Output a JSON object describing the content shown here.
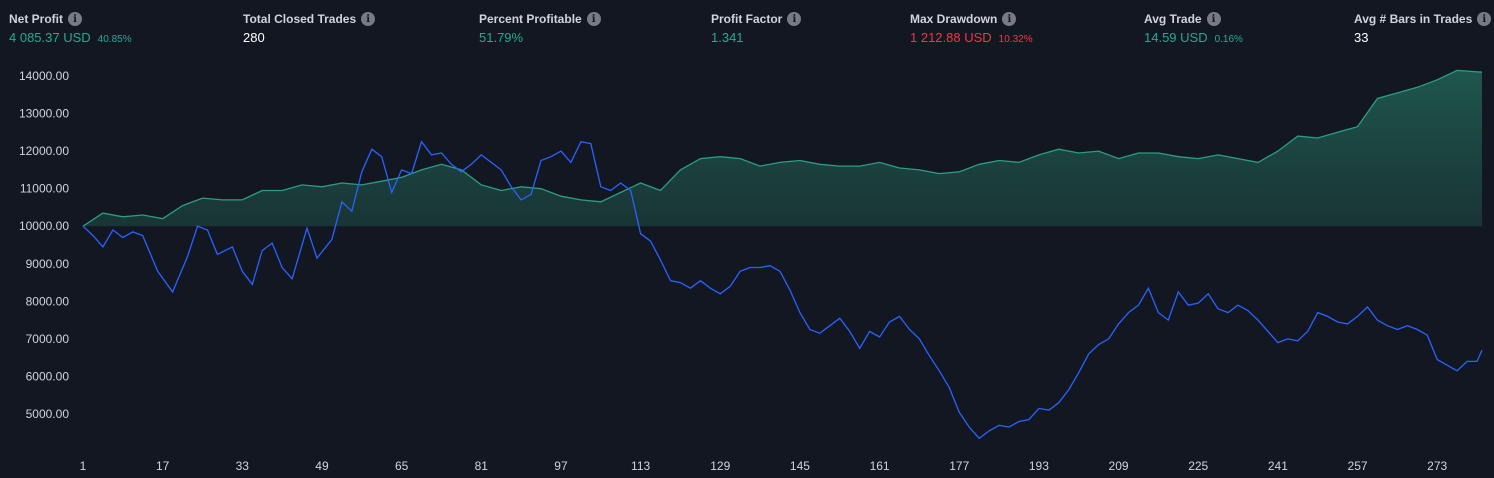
{
  "metrics": [
    {
      "title": "Net Profit",
      "value": "4 085.37 USD",
      "pct": "40.85%",
      "tone": "pos"
    },
    {
      "title": "Total Closed Trades",
      "value": "280",
      "pct": "",
      "tone": "neutral"
    },
    {
      "title": "Percent Profitable",
      "value": "51.79%",
      "pct": "",
      "tone": "pos"
    },
    {
      "title": "Profit Factor",
      "value": "1.341",
      "pct": "",
      "tone": "pos"
    },
    {
      "title": "Max Drawdown",
      "value": "1 212.88 USD",
      "pct": "10.32%",
      "tone": "neg"
    },
    {
      "title": "Avg Trade",
      "value": "14.59 USD",
      "pct": "0.16%",
      "tone": "pos"
    },
    {
      "title": "Avg # Bars in Trades",
      "value": "33",
      "pct": "",
      "tone": "neutral"
    }
  ],
  "icons": {
    "info": "info-icon"
  },
  "colors": {
    "background": "#131722",
    "equity_line": "#2a9d82",
    "equity_fill": "#1a4a42",
    "buy_hold_line": "#2962ff",
    "positive": "#22ab94",
    "negative": "#f23645",
    "text": "#d1d4dc"
  },
  "chart_data": {
    "type": "area",
    "title": "",
    "xlabel": "",
    "ylabel": "",
    "baseline": 10000,
    "ylim": [
      4000,
      14600
    ],
    "xlim": [
      1,
      282
    ],
    "y_ticks": [
      "14000.00",
      "13000.00",
      "12000.00",
      "11000.00",
      "10000.00",
      "9000.00",
      "8000.00",
      "7000.00",
      "6000.00",
      "5000.00"
    ],
    "x_ticks": [
      "1",
      "17",
      "33",
      "49",
      "65",
      "81",
      "97",
      "113",
      "129",
      "145",
      "161",
      "177",
      "193",
      "209",
      "225",
      "241",
      "257",
      "273"
    ],
    "grid": false,
    "legend": "none",
    "series": [
      {
        "type": "area",
        "x": [
          1,
          5,
          9,
          13,
          17,
          21,
          25,
          29,
          33,
          37,
          41,
          45,
          49,
          53,
          57,
          61,
          65,
          69,
          73,
          77,
          81,
          85,
          89,
          93,
          97,
          101,
          105,
          109,
          113,
          117,
          121,
          125,
          129,
          133,
          137,
          141,
          145,
          149,
          153,
          157,
          161,
          165,
          169,
          173,
          177,
          181,
          185,
          189,
          193,
          197,
          201,
          205,
          209,
          213,
          217,
          221,
          225,
          229,
          233,
          237,
          241,
          245,
          249,
          253,
          257,
          261,
          265,
          269,
          273,
          277,
          282
        ],
        "y": [
          10000,
          10350,
          10250,
          10300,
          10200,
          10550,
          10750,
          10700,
          10700,
          10950,
          10950,
          11100,
          11050,
          11150,
          11100,
          11200,
          11300,
          11500,
          11650,
          11500,
          11100,
          10950,
          11050,
          11000,
          10800,
          10700,
          10650,
          10900,
          11150,
          10950,
          11500,
          11800,
          11850,
          11800,
          11600,
          11700,
          11750,
          11650,
          11600,
          11600,
          11700,
          11550,
          11500,
          11400,
          11450,
          11650,
          11750,
          11700,
          11900,
          12050,
          11950,
          12000,
          11800,
          11950,
          11950,
          11850,
          11800,
          11900,
          11800,
          11700,
          12000,
          12400,
          12350,
          12500,
          12650,
          13400,
          13550,
          13700,
          13900,
          14150,
          14100
        ]
      },
      {
        "type": "line",
        "x": [
          1,
          3,
          5,
          7,
          9,
          11,
          13,
          16,
          19,
          22,
          24,
          26,
          28,
          31,
          33,
          35,
          37,
          39,
          41,
          43,
          46,
          48,
          51,
          53,
          55,
          57,
          59,
          61,
          63,
          65,
          67,
          69,
          71,
          73,
          75,
          77,
          79,
          81,
          83,
          85,
          87,
          89,
          91,
          93,
          95,
          97,
          99,
          101,
          103,
          105,
          107,
          109,
          111,
          113,
          115,
          117,
          119,
          121,
          123,
          125,
          127,
          129,
          131,
          133,
          135,
          137,
          139,
          141,
          143,
          145,
          147,
          149,
          151,
          153,
          155,
          157,
          159,
          161,
          163,
          165,
          167,
          169,
          171,
          173,
          175,
          177,
          179,
          181,
          183,
          185,
          187,
          189,
          191,
          193,
          195,
          197,
          199,
          201,
          203,
          205,
          207,
          209,
          211,
          213,
          215,
          217,
          219,
          221,
          223,
          225,
          227,
          229,
          231,
          233,
          235,
          237,
          239,
          241,
          243,
          245,
          247,
          249,
          251,
          253,
          255,
          257,
          259,
          261,
          263,
          265,
          267,
          269,
          271,
          273,
          275,
          277,
          279,
          281,
          282
        ],
        "y": [
          10000,
          9750,
          9450,
          9900,
          9700,
          9850,
          9750,
          8800,
          8250,
          9200,
          10000,
          9900,
          9250,
          9450,
          8800,
          8450,
          9350,
          9550,
          8900,
          8600,
          9950,
          9150,
          9650,
          10650,
          10400,
          11450,
          12050,
          11850,
          10900,
          11500,
          11400,
          12250,
          11900,
          11950,
          11650,
          11450,
          11650,
          11900,
          11700,
          11500,
          11050,
          10700,
          10850,
          11750,
          11850,
          12000,
          11700,
          12250,
          12200,
          11050,
          10950,
          11150,
          10950,
          9800,
          9600,
          9100,
          8550,
          8500,
          8350,
          8550,
          8350,
          8200,
          8400,
          8800,
          8900,
          8900,
          8950,
          8800,
          8300,
          7700,
          7250,
          7150,
          7350,
          7550,
          7200,
          6750,
          7200,
          7050,
          7450,
          7600,
          7250,
          7000,
          6550,
          6150,
          5700,
          5050,
          4650,
          4350,
          4550,
          4700,
          4650,
          4800,
          4850,
          5150,
          5100,
          5300,
          5650,
          6100,
          6600,
          6850,
          7000,
          7400,
          7700,
          7900,
          8350,
          7700,
          7500,
          8250,
          7900,
          7950,
          8200,
          7800,
          7700,
          7900,
          7750,
          7500,
          7200,
          6900,
          7000,
          6950,
          7200,
          7700,
          7600,
          7450,
          7400,
          7600,
          7850,
          7500,
          7350,
          7250,
          7350,
          7250,
          7100,
          6450,
          6300,
          6150,
          6400,
          6400,
          6700
        ]
      }
    ]
  }
}
